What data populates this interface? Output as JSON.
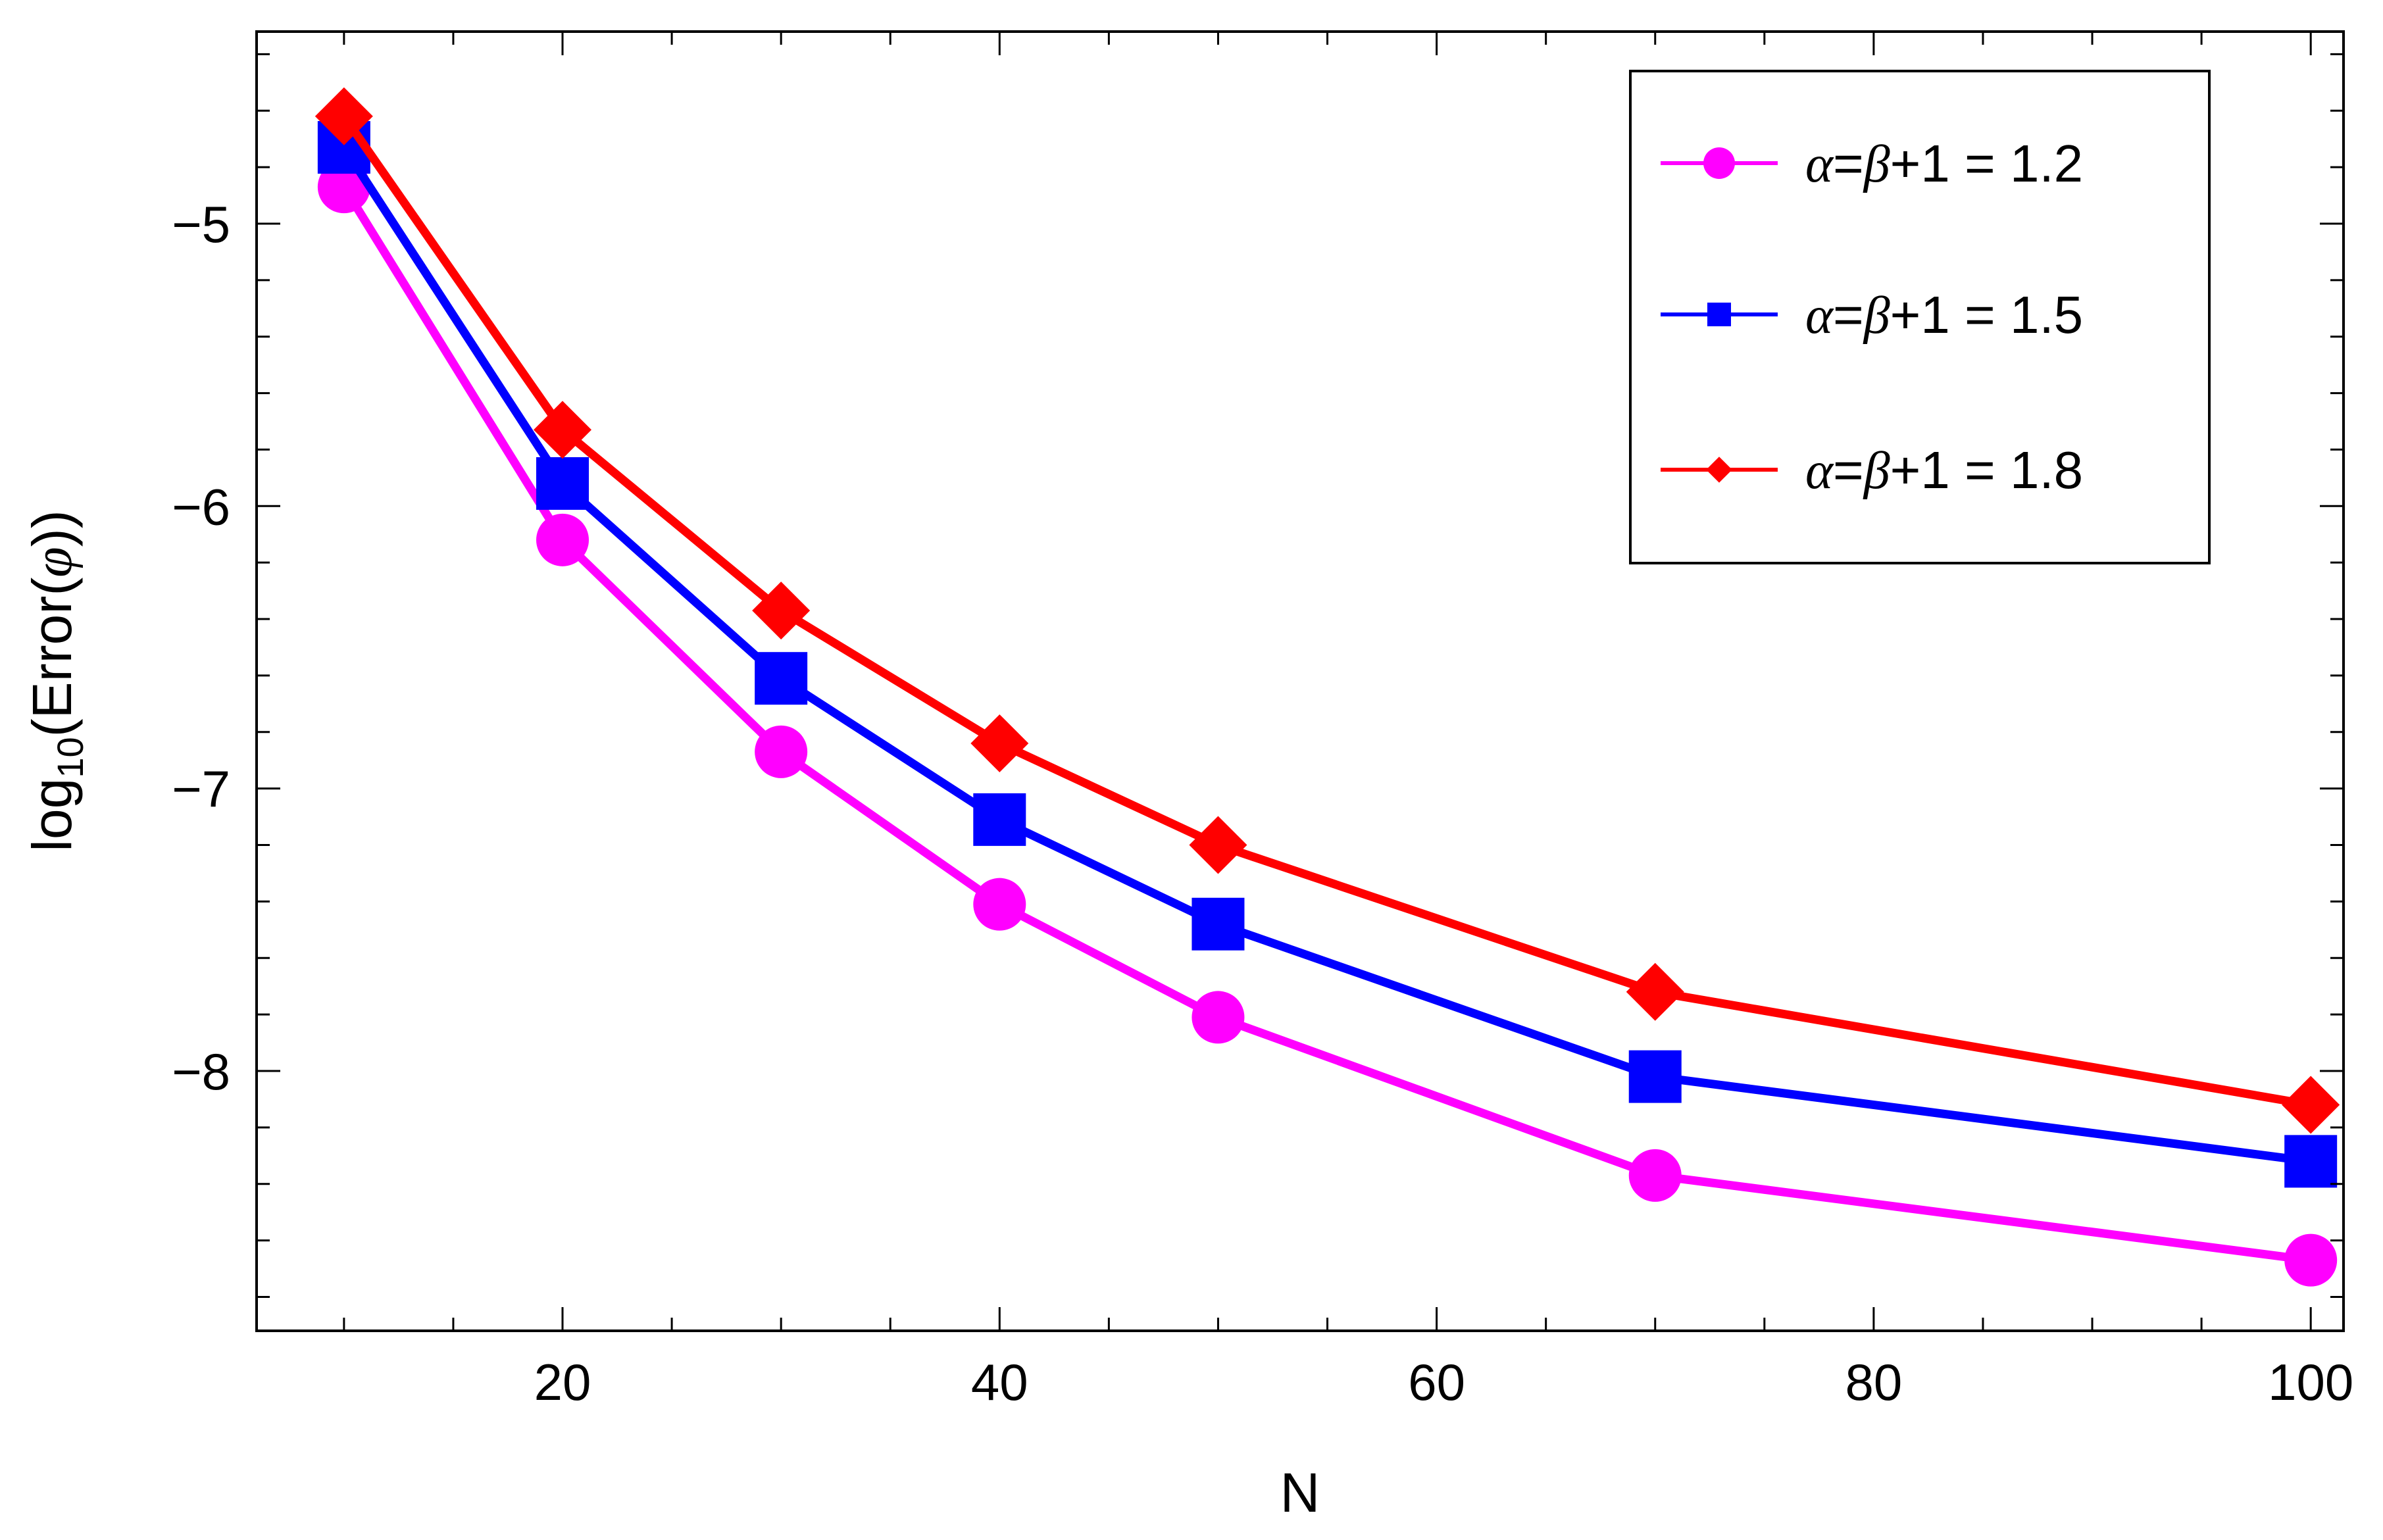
{
  "chart_data": {
    "type": "line",
    "title": "",
    "xlabel": "N",
    "ylabel": {
      "prefix": "log",
      "subscript": "10",
      "suffix_a": "(Error(",
      "symbol": "φ",
      "suffix_b": "))"
    },
    "xlim": [
      6,
      101.5
    ],
    "ylim": [
      -8.92,
      -4.32
    ],
    "x_ticks": [
      20,
      40,
      60,
      80,
      100
    ],
    "x_tick_labels": [
      "20",
      "40",
      "60",
      "80",
      "100"
    ],
    "x_minor_step": 5,
    "y_ticks": [
      -5,
      -6,
      -7,
      -8
    ],
    "y_tick_labels": [
      "−5",
      "−6",
      "−7",
      "−8"
    ],
    "y_minor_step": 0.2,
    "grid": false,
    "legend_position": "top-right",
    "x": [
      10,
      20,
      30,
      40,
      50,
      70,
      100
    ],
    "series": [
      {
        "name": "α=β+1 = 1.2",
        "label_parts": {
          "a": "α",
          "eq": "=",
          "b": "β",
          "rest": "+1 = 1.2"
        },
        "marker": "circle",
        "color": "#ff00ff",
        "values": [
          -4.87,
          -6.12,
          -6.87,
          -7.41,
          -7.81,
          -8.37,
          -8.67
        ]
      },
      {
        "name": "α=β+1 = 1.5",
        "label_parts": {
          "a": "α",
          "eq": "=",
          "b": "β",
          "rest": "+1 = 1.5"
        },
        "marker": "square",
        "color": "#0000ff",
        "values": [
          -4.73,
          -5.92,
          -6.61,
          -7.11,
          -7.48,
          -8.02,
          -8.32
        ]
      },
      {
        "name": "α=β+1 = 1.8",
        "label_parts": {
          "a": "α",
          "eq": "=",
          "b": "β",
          "rest": "+1 = 1.8"
        },
        "marker": "diamond",
        "color": "#ff0000",
        "values": [
          -4.62,
          -5.73,
          -6.37,
          -6.84,
          -7.2,
          -7.72,
          -8.12
        ]
      }
    ]
  }
}
